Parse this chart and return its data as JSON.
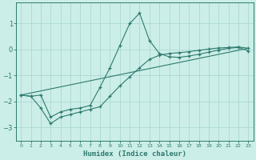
{
  "xlabel": "Humidex (Indice chaleur)",
  "background_color": "#cceee8",
  "grid_color": "#aad8d0",
  "line_color": "#2d7a6e",
  "xlim": [
    -0.5,
    23.5
  ],
  "ylim": [
    -3.5,
    1.8
  ],
  "yticks": [
    -3,
    -2,
    -1,
    0,
    1
  ],
  "xticks": [
    0,
    1,
    2,
    3,
    4,
    5,
    6,
    7,
    8,
    9,
    10,
    11,
    12,
    13,
    14,
    15,
    16,
    17,
    18,
    19,
    20,
    21,
    22,
    23
  ],
  "line1_x": [
    0,
    1,
    2,
    3,
    4,
    5,
    6,
    7,
    8,
    9,
    10,
    11,
    12,
    13,
    14,
    15,
    16,
    17,
    18,
    19,
    20,
    21,
    22,
    23
  ],
  "line1_y": [
    -1.75,
    -1.8,
    -1.75,
    -2.6,
    -2.4,
    -2.3,
    -2.25,
    -2.15,
    -1.45,
    -0.7,
    0.15,
    1.0,
    1.4,
    0.35,
    -0.15,
    -0.28,
    -0.3,
    -0.25,
    -0.18,
    -0.1,
    -0.02,
    0.05,
    0.08,
    -0.05
  ],
  "line2_x": [
    0,
    1,
    2,
    3,
    4,
    5,
    6,
    7,
    8,
    9,
    10,
    11,
    12,
    13,
    14,
    15,
    16,
    17,
    18,
    19,
    20,
    21,
    22,
    23
  ],
  "line2_y": [
    -1.75,
    -1.8,
    -2.25,
    -2.85,
    -2.6,
    -2.5,
    -2.4,
    -2.3,
    -2.2,
    -1.8,
    -1.4,
    -1.05,
    -0.7,
    -0.38,
    -0.22,
    -0.15,
    -0.12,
    -0.08,
    -0.03,
    0.02,
    0.06,
    0.08,
    0.1,
    0.05
  ],
  "line3_x": [
    0,
    23
  ],
  "line3_y": [
    -1.75,
    0.05
  ]
}
